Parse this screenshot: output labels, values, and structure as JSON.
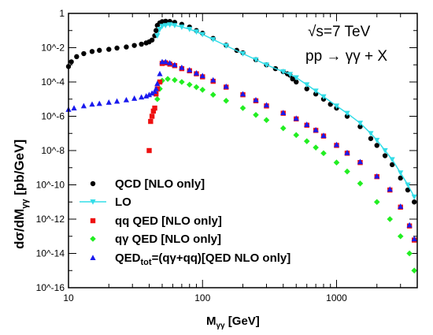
{
  "chart_data": {
    "type": "scatter",
    "xscale": "log",
    "yscale": "log",
    "xlim": [
      10,
      4000
    ],
    "ylim": [
      1e-16,
      1
    ],
    "xlabel": "M",
    "xlabel_sub": "γγ",
    "xlabel_unit": " [GeV]",
    "ylabel_pre": "dσ/dM",
    "ylabel_sub": "γγ",
    "ylabel_unit": " [pb/GeV]",
    "x_tick_labels": [
      {
        "value": 10,
        "label": "10"
      },
      {
        "value": 100,
        "label": "100"
      },
      {
        "value": 1000,
        "label": "1000"
      }
    ],
    "y_tick_labels": [
      {
        "value": 1,
        "label": "1"
      },
      {
        "value": 0.01,
        "label": "10^-2"
      },
      {
        "value": 0.0001,
        "label": "10^-4"
      },
      {
        "value": 1e-06,
        "label": "10^-6"
      },
      {
        "value": 1e-08,
        "label": "10^-8"
      },
      {
        "value": 1e-10,
        "label": "10^-10"
      },
      {
        "value": 1e-12,
        "label": "10^-12"
      },
      {
        "value": 1e-14,
        "label": "10^-14"
      },
      {
        "value": 1e-16,
        "label": "10^-16"
      }
    ],
    "annotations": [
      "√s=7 TeV",
      "pp → γγ + X"
    ],
    "legend_position": "bottom-left",
    "series": [
      {
        "name": "QCD [NLO only]",
        "marker": "circle",
        "color": "#000000",
        "points": [
          [
            10,
            0.0008
          ],
          [
            10.5,
            0.0015
          ],
          [
            11.5,
            0.003
          ],
          [
            13,
            0.0045
          ],
          [
            15,
            0.006
          ],
          [
            17,
            0.007
          ],
          [
            20,
            0.008
          ],
          [
            23,
            0.0095
          ],
          [
            27,
            0.011
          ],
          [
            31,
            0.0135
          ],
          [
            35,
            0.016
          ],
          [
            38,
            0.019
          ],
          [
            40,
            0.022
          ],
          [
            42,
            0.028
          ],
          [
            44,
            0.05
          ],
          [
            45,
            0.1
          ],
          [
            46,
            0.2
          ],
          [
            48,
            0.28
          ],
          [
            50,
            0.33
          ],
          [
            53,
            0.35
          ],
          [
            57,
            0.34
          ],
          [
            62,
            0.3
          ],
          [
            70,
            0.23
          ],
          [
            80,
            0.16
          ],
          [
            90,
            0.1
          ],
          [
            100,
            0.07
          ],
          [
            120,
            0.035
          ],
          [
            150,
            0.014
          ],
          [
            180,
            0.007
          ],
          [
            200,
            0.005
          ],
          [
            250,
            0.002
          ],
          [
            300,
            0.001
          ],
          [
            350,
            0.0006
          ],
          [
            400,
            0.0004
          ],
          [
            430,
            0.0003
          ],
          [
            450,
            0.00025
          ],
          [
            470,
            0.00015
          ],
          [
            500,
            0.0001
          ],
          [
            600,
            4e-05
          ],
          [
            700,
            2e-05
          ],
          [
            800,
            1e-05
          ],
          [
            900,
            5e-06
          ],
          [
            1000,
            3e-06
          ],
          [
            1200,
            1e-06
          ],
          [
            1500,
            2.5e-07
          ],
          [
            1800,
            5e-08
          ],
          [
            2000,
            2e-08
          ],
          [
            2300,
            5e-09
          ],
          [
            2600,
            1.5e-09
          ],
          [
            3000,
            2.5e-10
          ],
          [
            3400,
            5e-11
          ],
          [
            3800,
            1e-11
          ]
        ]
      },
      {
        "name": "LO",
        "marker": "triangle-down",
        "line": true,
        "color": "#33dde8",
        "points": [
          [
            46,
            0.05
          ],
          [
            48,
            0.12
          ],
          [
            50,
            0.18
          ],
          [
            53,
            0.2
          ],
          [
            57,
            0.22
          ],
          [
            62,
            0.2
          ],
          [
            70,
            0.16
          ],
          [
            80,
            0.12
          ],
          [
            90,
            0.085
          ],
          [
            100,
            0.06
          ],
          [
            120,
            0.03
          ],
          [
            150,
            0.013
          ],
          [
            200,
            0.0045
          ],
          [
            250,
            0.002
          ],
          [
            300,
            0.001
          ],
          [
            400,
            0.0004
          ],
          [
            450,
            0.00028
          ],
          [
            500,
            0.00018
          ],
          [
            600,
            7e-05
          ],
          [
            700,
            3e-05
          ],
          [
            800,
            1.4e-05
          ],
          [
            1000,
            4e-06
          ],
          [
            1200,
            1.5e-06
          ],
          [
            1500,
            4e-07
          ],
          [
            1800,
            1e-07
          ],
          [
            2000,
            4e-08
          ],
          [
            2300,
            1e-08
          ],
          [
            2600,
            3e-09
          ],
          [
            3000,
            5e-10
          ],
          [
            3400,
            1e-10
          ],
          [
            3800,
            2e-11
          ]
        ]
      },
      {
        "name": "qq QED [NLO only]",
        "marker": "square",
        "color": "#ee1111",
        "points": [
          [
            40,
            1e-08
          ],
          [
            41,
            5e-07
          ],
          [
            42,
            1e-06
          ],
          [
            43,
            2e-06
          ],
          [
            44,
            3e-06
          ],
          [
            45,
            2e-05
          ],
          [
            46,
            4e-05
          ],
          [
            48,
            0.0001
          ],
          [
            50,
            0.0012
          ],
          [
            53,
            0.0013
          ],
          [
            57,
            0.0011
          ],
          [
            62,
            0.0009
          ],
          [
            70,
            0.0006
          ],
          [
            80,
            0.00045
          ],
          [
            90,
            0.0003
          ],
          [
            100,
            0.0002
          ],
          [
            120,
            0.00011
          ],
          [
            150,
            5e-05
          ],
          [
            200,
            1.8e-05
          ],
          [
            250,
            8e-06
          ],
          [
            300,
            4e-06
          ],
          [
            400,
            1.5e-06
          ],
          [
            500,
            7e-07
          ],
          [
            600,
            3e-07
          ],
          [
            700,
            1.5e-07
          ],
          [
            800,
            7e-08
          ],
          [
            1000,
            2e-08
          ],
          [
            1200,
            7e-09
          ],
          [
            1500,
            2e-09
          ],
          [
            2000,
            3e-10
          ],
          [
            2500,
            5e-11
          ],
          [
            3000,
            5e-12
          ],
          [
            3500,
            4e-13
          ],
          [
            3800,
            6e-14
          ]
        ]
      },
      {
        "name": "qγ QED [NLO only]",
        "marker": "diamond",
        "color": "#22ee22",
        "points": [
          [
            46,
            1e-05
          ],
          [
            48,
            4e-05
          ],
          [
            50,
            0.00012
          ],
          [
            55,
            0.00015
          ],
          [
            62,
            0.00013
          ],
          [
            70,
            0.0001
          ],
          [
            80,
            7e-05
          ],
          [
            90,
            5e-05
          ],
          [
            100,
            3.5e-05
          ],
          [
            120,
            1.8e-05
          ],
          [
            150,
            8e-06
          ],
          [
            200,
            3e-06
          ],
          [
            250,
            1.2e-06
          ],
          [
            300,
            6e-07
          ],
          [
            400,
            2e-07
          ],
          [
            500,
            8e-08
          ],
          [
            600,
            3.5e-08
          ],
          [
            700,
            1.5e-08
          ],
          [
            800,
            7e-09
          ],
          [
            1000,
            2e-09
          ],
          [
            1200,
            6e-10
          ],
          [
            1500,
            1.2e-10
          ],
          [
            2000,
            1e-11
          ],
          [
            2500,
            1e-12
          ],
          [
            3000,
            1e-13
          ],
          [
            3500,
            1e-14
          ],
          [
            3800,
            1e-15
          ]
        ]
      },
      {
        "name": "QEDtot=(qγ+qq)[QED NLO only]",
        "name_parts": [
          "QED",
          "tot",
          "=(qγ+qq)[QED NLO only]"
        ],
        "marker": "triangle-up",
        "color": "#1a1aee",
        "points": [
          [
            10,
            2.5e-06
          ],
          [
            11,
            3e-06
          ],
          [
            13,
            4e-06
          ],
          [
            15,
            5e-06
          ],
          [
            17,
            5.5e-06
          ],
          [
            20,
            6.5e-06
          ],
          [
            23,
            7.5e-06
          ],
          [
            27,
            9e-06
          ],
          [
            31,
            1.1e-05
          ],
          [
            35,
            1.3e-05
          ],
          [
            38,
            1.5e-05
          ],
          [
            40,
            1.8e-05
          ],
          [
            42,
            2.2e-05
          ],
          [
            44,
            2.8e-05
          ],
          [
            45,
            4e-05
          ],
          [
            46,
            8e-05
          ],
          [
            48,
            0.0003
          ],
          [
            50,
            0.0015
          ],
          [
            53,
            0.0015
          ],
          [
            57,
            0.0013
          ],
          [
            62,
            0.001
          ],
          [
            70,
            0.0007
          ],
          [
            80,
            0.0005
          ],
          [
            90,
            0.00033
          ],
          [
            100,
            0.00023
          ],
          [
            120,
            0.00013
          ],
          [
            150,
            5.5e-05
          ],
          [
            200,
            2e-05
          ],
          [
            250,
            9e-06
          ],
          [
            300,
            4.5e-06
          ],
          [
            400,
            1.6e-06
          ],
          [
            500,
            7.5e-07
          ],
          [
            600,
            3.3e-07
          ],
          [
            700,
            1.6e-07
          ],
          [
            800,
            7.5e-08
          ],
          [
            1000,
            2.2e-08
          ],
          [
            1200,
            7.5e-09
          ],
          [
            1500,
            2.2e-09
          ],
          [
            2000,
            3.2e-10
          ],
          [
            2500,
            5.5e-11
          ],
          [
            3000,
            5.5e-12
          ],
          [
            3500,
            4.5e-13
          ],
          [
            3800,
            7e-14
          ]
        ]
      }
    ]
  }
}
